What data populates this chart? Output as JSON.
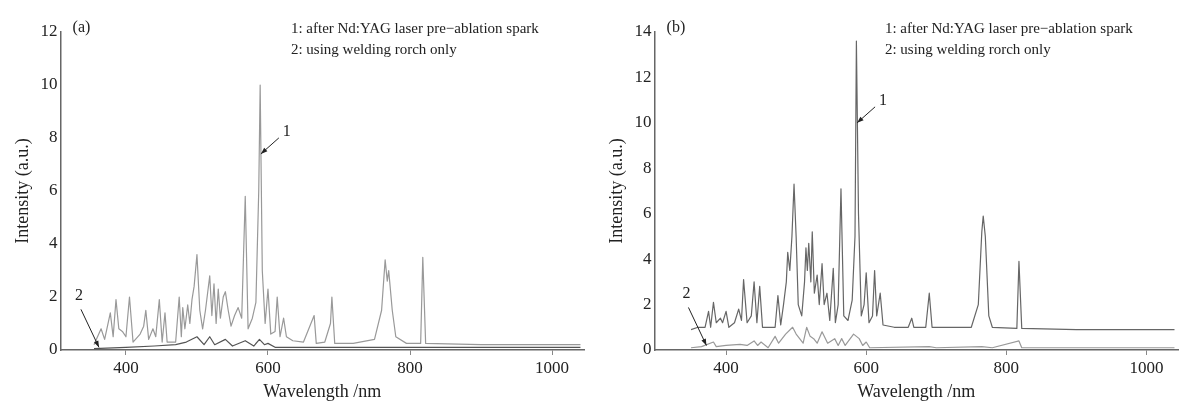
{
  "chart_data": [
    {
      "type": "line",
      "title": "(a)",
      "xlabel": "Wavelength /nm",
      "ylabel": "Intensity (a.u.)",
      "xlim": [
        308,
        1045
      ],
      "xticks": [
        400,
        600,
        800,
        1000
      ],
      "ylim": [
        0,
        12
      ],
      "yticks": [
        0,
        2,
        4,
        6,
        8,
        10,
        12
      ],
      "grid": false,
      "legend": false,
      "marker": "none",
      "line_style": "solid",
      "annotations": [
        "1: after Nd:YAG laser pre−ablation spark",
        "2: using welding rorch only",
        {
          "text": "1",
          "x": 590,
          "y": 7.4
        },
        {
          "text": "2",
          "x": 362,
          "y": 0.1
        }
      ],
      "series": [
        {
          "color": "#999999",
          "x": [
            355,
            365,
            370,
            378,
            382,
            386,
            390,
            395,
            400,
            405,
            410,
            420,
            425,
            428,
            432,
            438,
            442,
            447,
            451,
            455,
            458,
            470,
            475,
            478,
            480,
            483,
            487,
            490,
            493,
            496,
            500,
            504,
            508,
            512,
            518,
            521,
            524,
            527,
            530,
            533,
            537,
            540,
            544,
            548,
            553,
            558,
            563,
            568,
            572,
            578,
            583,
            587,
            589,
            592,
            596,
            600,
            604,
            610,
            613,
            617,
            622,
            626,
            635,
            650,
            665,
            668,
            680,
            688,
            690,
            694,
            720,
            750,
            760,
            765,
            768,
            770,
            775,
            780,
            795,
            815,
            818,
            822,
            900,
            1000,
            1040
          ],
          "values": [
            0.2,
            0.8,
            0.4,
            1.4,
            0.5,
            1.9,
            0.8,
            0.7,
            0.5,
            2.0,
            0.3,
            0.6,
            0.9,
            1.5,
            0.4,
            0.8,
            0.5,
            1.9,
            0.3,
            1.4,
            0.3,
            0.3,
            2.0,
            0.5,
            1.6,
            0.8,
            1.7,
            1.0,
            1.9,
            2.4,
            3.6,
            1.5,
            0.8,
            1.5,
            2.8,
            1.3,
            2.5,
            1.0,
            2.3,
            1.2,
            2.0,
            2.2,
            1.5,
            0.9,
            1.3,
            1.6,
            1.2,
            5.8,
            0.8,
            1.2,
            1.8,
            6.0,
            10.0,
            3.0,
            1.0,
            2.3,
            0.6,
            0.7,
            2.0,
            0.5,
            1.2,
            0.5,
            0.35,
            0.3,
            1.3,
            0.25,
            0.3,
            1.0,
            2.0,
            0.25,
            0.25,
            0.4,
            1.5,
            3.4,
            2.6,
            3.0,
            1.5,
            0.5,
            0.25,
            0.25,
            3.5,
            0.25,
            0.2,
            0.2,
            0.2
          ]
        },
        {
          "color": "#555555",
          "x": [
            355,
            400,
            440,
            470,
            485,
            500,
            510,
            518,
            525,
            540,
            550,
            568,
            580,
            588,
            595,
            600,
            610,
            800,
            1040
          ],
          "values": [
            0.05,
            0.1,
            0.15,
            0.2,
            0.3,
            0.5,
            0.2,
            0.5,
            0.2,
            0.4,
            0.15,
            0.35,
            0.15,
            0.4,
            0.2,
            0.25,
            0.1,
            0.1,
            0.1
          ]
        }
      ]
    },
    {
      "type": "line",
      "title": "(b)",
      "xlabel": "Wavelength /nm",
      "ylabel": "Intensity (a.u.)",
      "xlim": [
        298,
        1045
      ],
      "xticks": [
        400,
        600,
        800,
        1000
      ],
      "ylim": [
        0,
        14
      ],
      "yticks": [
        0,
        2,
        4,
        6,
        8,
        10,
        12,
        14
      ],
      "grid": false,
      "legend": false,
      "marker": "none",
      "line_style": "solid",
      "annotations": [
        "1: after Nd:YAG laser pre−ablation spark",
        "2: using welding rorch only",
        {
          "text": "1",
          "x": 587,
          "y": 10
        },
        {
          "text": "2",
          "x": 372,
          "y": 0.2
        }
      ],
      "series": [
        {
          "color": "#666666",
          "x": [
            350,
            360,
            370,
            375,
            378,
            382,
            386,
            392,
            395,
            400,
            404,
            412,
            418,
            422,
            425,
            430,
            436,
            440,
            444,
            448,
            452,
            460,
            470,
            474,
            478,
            482,
            486,
            488,
            491,
            494,
            497,
            500,
            503,
            508,
            512,
            514,
            516,
            518,
            521,
            523,
            526,
            530,
            533,
            537,
            540,
            544,
            548,
            553,
            556,
            560,
            564,
            568,
            574,
            580,
            584,
            586,
            589,
            593,
            597,
            600,
            604,
            609,
            612,
            615,
            620,
            624,
            640,
            660,
            665,
            668,
            685,
            690,
            694,
            720,
            750,
            760,
            765,
            767,
            770,
            775,
            780,
            815,
            818,
            822,
            900,
            1000,
            1040
          ],
          "values": [
            0.9,
            1.0,
            1.0,
            1.7,
            1.0,
            2.1,
            1.2,
            1.4,
            1.2,
            1.7,
            1.0,
            1.2,
            1.8,
            1.3,
            3.1,
            1.2,
            1.5,
            3.0,
            1.2,
            2.8,
            1.0,
            1.0,
            1.0,
            2.4,
            1.1,
            2.0,
            3.0,
            4.3,
            3.5,
            5.0,
            7.3,
            5.0,
            2.0,
            1.5,
            3.0,
            4.5,
            3.5,
            4.7,
            3.0,
            5.2,
            2.5,
            3.3,
            2.0,
            3.8,
            2.0,
            2.5,
            1.3,
            3.6,
            1.2,
            2.0,
            7.1,
            1.5,
            1.3,
            2.2,
            5.0,
            13.6,
            6.0,
            1.5,
            2.0,
            3.4,
            1.2,
            1.5,
            3.5,
            1.5,
            2.5,
            1.1,
            1.0,
            1.0,
            1.4,
            1.0,
            1.0,
            2.5,
            1.0,
            1.0,
            1.0,
            2.0,
            5.2,
            5.9,
            5.0,
            1.5,
            1.0,
            0.95,
            3.9,
            0.95,
            0.9,
            0.9,
            0.9
          ]
        },
        {
          "color": "#999999",
          "x": [
            350,
            365,
            382,
            386,
            400,
            420,
            430,
            440,
            445,
            450,
            460,
            470,
            475,
            485,
            495,
            500,
            510,
            515,
            520,
            525,
            530,
            537,
            545,
            555,
            560,
            565,
            570,
            582,
            590,
            595,
            600,
            605,
            690,
            700,
            765,
            780,
            818,
            822,
            1040
          ],
          "values": [
            0.1,
            0.15,
            0.35,
            0.15,
            0.2,
            0.25,
            0.2,
            0.4,
            0.2,
            0.35,
            0.1,
            0.6,
            0.3,
            0.7,
            1.0,
            0.7,
            0.3,
            1.0,
            0.6,
            0.5,
            0.3,
            0.8,
            0.3,
            0.5,
            0.2,
            0.5,
            0.2,
            0.7,
            0.5,
            0.2,
            0.35,
            0.1,
            0.15,
            0.1,
            0.15,
            0.1,
            0.4,
            0.1,
            0.1
          ]
        }
      ]
    }
  ]
}
